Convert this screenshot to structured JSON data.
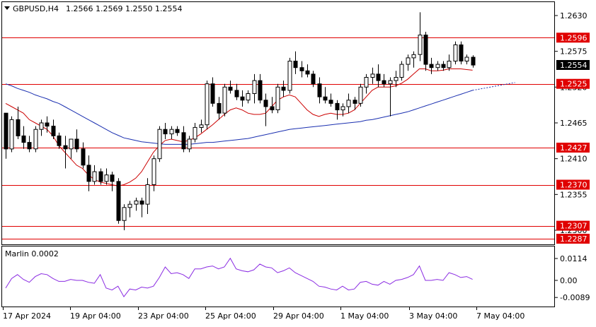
{
  "header": {
    "symbol": "GBPUSD,H4",
    "ohlc": "1.2566 1.2569 1.2550 1.2554"
  },
  "indicator": {
    "label": "Marlin 0.0002",
    "axis_labels": [
      "0.0114",
      "0.00",
      "-0.0089"
    ]
  },
  "price_axis": {
    "labels": [
      "1.2630",
      "1.2575",
      "1.2520",
      "1.2465",
      "1.2410",
      "1.2355",
      "1.2300"
    ]
  },
  "levels": [
    "1.2596",
    "1.2525",
    "1.2427",
    "1.2370",
    "1.2307",
    "1.2287"
  ],
  "current_price": "1.2554",
  "time_axis": {
    "labels": [
      "17 Apr 2024",
      "19 Apr 04:00",
      "23 Apr 04:00",
      "25 Apr 04:00",
      "29 Apr 04:00",
      "1 May 04:00",
      "3 May 04:00",
      "7 May 04:00"
    ]
  },
  "colors": {
    "level_line": "#e00000",
    "tag_bg": "#e00000",
    "current_tag_bg": "#000000",
    "ma_fast": "#cc0000",
    "ma_slow": "#1a2fb0",
    "oscillator": "#8a2be2",
    "bull_candle": "#ffffff",
    "bear_candle": "#000000"
  },
  "chart_data": {
    "type": "candlestick",
    "title": "GBPUSD,H4",
    "ylim": [
      1.2287,
      1.2648
    ],
    "candles": [
      [
        1.248,
        1.248,
        1.241,
        1.2425
      ],
      [
        1.2425,
        1.2475,
        1.242,
        1.247
      ],
      [
        1.247,
        1.249,
        1.244,
        1.2445
      ],
      [
        1.2445,
        1.246,
        1.2425,
        1.2435
      ],
      [
        1.2435,
        1.2445,
        1.242,
        1.2425
      ],
      [
        1.2425,
        1.246,
        1.242,
        1.2455
      ],
      [
        1.2455,
        1.247,
        1.2445,
        1.2465
      ],
      [
        1.2465,
        1.2475,
        1.245,
        1.246
      ],
      [
        1.246,
        1.247,
        1.244,
        1.2445
      ],
      [
        1.2445,
        1.245,
        1.2425,
        1.243
      ],
      [
        1.243,
        1.2445,
        1.2395,
        1.2425
      ],
      [
        1.2425,
        1.244,
        1.241,
        1.244
      ],
      [
        1.244,
        1.2455,
        1.242,
        1.2425
      ],
      [
        1.2425,
        1.2435,
        1.2395,
        1.24
      ],
      [
        1.24,
        1.2415,
        1.236,
        1.2375
      ],
      [
        1.2375,
        1.24,
        1.237,
        1.239
      ],
      [
        1.239,
        1.2395,
        1.237,
        1.2375
      ],
      [
        1.2375,
        1.2395,
        1.237,
        1.2385
      ],
      [
        1.2385,
        1.239,
        1.236,
        1.2375
      ],
      [
        1.2375,
        1.238,
        1.231,
        1.2315
      ],
      [
        1.2315,
        1.234,
        1.23,
        1.2335
      ],
      [
        1.2335,
        1.2345,
        1.232,
        1.234
      ],
      [
        1.234,
        1.235,
        1.233,
        1.2345
      ],
      [
        1.2345,
        1.235,
        1.232,
        1.234
      ],
      [
        1.234,
        1.238,
        1.2325,
        1.237
      ],
      [
        1.237,
        1.2415,
        1.236,
        1.241
      ],
      [
        1.241,
        1.246,
        1.2405,
        1.2455
      ],
      [
        1.2455,
        1.2465,
        1.244,
        1.2448
      ],
      [
        1.2448,
        1.246,
        1.244,
        1.2455
      ],
      [
        1.2455,
        1.246,
        1.2445,
        1.245
      ],
      [
        1.245,
        1.246,
        1.242,
        1.2425
      ],
      [
        1.2425,
        1.2445,
        1.242,
        1.244
      ],
      [
        1.244,
        1.2465,
        1.2435,
        1.2458
      ],
      [
        1.2458,
        1.247,
        1.245,
        1.2462
      ],
      [
        1.2462,
        1.253,
        1.2455,
        1.2525
      ],
      [
        1.2525,
        1.2535,
        1.249,
        1.2495
      ],
      [
        1.2495,
        1.2505,
        1.247,
        1.248
      ],
      [
        1.248,
        1.2525,
        1.2475,
        1.252
      ],
      [
        1.252,
        1.253,
        1.251,
        1.2515
      ],
      [
        1.2515,
        1.2525,
        1.25,
        1.2505
      ],
      [
        1.2505,
        1.2515,
        1.249,
        1.25
      ],
      [
        1.25,
        1.2515,
        1.2495,
        1.251
      ],
      [
        1.251,
        1.254,
        1.2495,
        1.253
      ],
      [
        1.253,
        1.254,
        1.2495,
        1.25
      ],
      [
        1.25,
        1.251,
        1.246,
        1.249
      ],
      [
        1.249,
        1.2505,
        1.248,
        1.2485
      ],
      [
        1.2485,
        1.2525,
        1.248,
        1.252
      ],
      [
        1.252,
        1.253,
        1.2505,
        1.2515
      ],
      [
        1.2515,
        1.2565,
        1.251,
        1.256
      ],
      [
        1.256,
        1.2575,
        1.254,
        1.255
      ],
      [
        1.255,
        1.256,
        1.2535,
        1.2545
      ],
      [
        1.2545,
        1.2555,
        1.2535,
        1.254
      ],
      [
        1.254,
        1.2545,
        1.252,
        1.2525
      ],
      [
        1.2525,
        1.2535,
        1.2495,
        1.2505
      ],
      [
        1.2505,
        1.252,
        1.2495,
        1.25
      ],
      [
        1.25,
        1.251,
        1.249,
        1.2495
      ],
      [
        1.2495,
        1.25,
        1.247,
        1.2485
      ],
      [
        1.2485,
        1.2495,
        1.2475,
        1.249
      ],
      [
        1.249,
        1.251,
        1.248,
        1.25
      ],
      [
        1.25,
        1.2505,
        1.2485,
        1.2495
      ],
      [
        1.2495,
        1.2525,
        1.249,
        1.252
      ],
      [
        1.252,
        1.254,
        1.251,
        1.2535
      ],
      [
        1.2535,
        1.255,
        1.2525,
        1.254
      ],
      [
        1.254,
        1.2555,
        1.252,
        1.253
      ],
      [
        1.253,
        1.254,
        1.252,
        1.2525
      ],
      [
        1.2525,
        1.2535,
        1.2475,
        1.253
      ],
      [
        1.253,
        1.2545,
        1.252,
        1.2535
      ],
      [
        1.2535,
        1.256,
        1.253,
        1.2555
      ],
      [
        1.2555,
        1.257,
        1.2545,
        1.2565
      ],
      [
        1.2565,
        1.2575,
        1.255,
        1.257
      ],
      [
        1.257,
        1.2635,
        1.256,
        1.26
      ],
      [
        1.26,
        1.2605,
        1.2545,
        1.2555
      ],
      [
        1.2555,
        1.2565,
        1.254,
        1.255
      ],
      [
        1.255,
        1.256,
        1.2545,
        1.2555
      ],
      [
        1.2555,
        1.256,
        1.2545,
        1.255
      ],
      [
        1.255,
        1.257,
        1.2545,
        1.256
      ],
      [
        1.256,
        1.259,
        1.2555,
        1.2585
      ],
      [
        1.2585,
        1.259,
        1.2555,
        1.256
      ],
      [
        1.256,
        1.257,
        1.2555,
        1.2566
      ],
      [
        1.2566,
        1.2569,
        1.255,
        1.2554
      ]
    ],
    "ma_fast": [
      1.2495,
      1.249,
      1.2485,
      1.248,
      1.247,
      1.2465,
      1.246,
      1.2455,
      1.2445,
      1.243,
      1.242,
      1.241,
      1.24,
      1.2395,
      1.2385,
      1.2378,
      1.2374,
      1.2372,
      1.237,
      1.2368,
      1.237,
      1.2374,
      1.238,
      1.239,
      1.2405,
      1.242,
      1.243,
      1.2438,
      1.244,
      1.2438,
      1.2436,
      1.2438,
      1.2442,
      1.2448,
      1.2455,
      1.2462,
      1.247,
      1.2478,
      1.2485,
      1.2488,
      1.2485,
      1.248,
      1.2478,
      1.2478,
      1.248,
      1.249,
      1.25,
      1.2505,
      1.2508,
      1.2505,
      1.2495,
      1.2485,
      1.2478,
      1.2475,
      1.2478,
      1.248,
      1.2478,
      1.2478,
      1.248,
      1.2485,
      1.2495,
      1.2505,
      1.2515,
      1.252,
      1.252,
      1.252,
      1.2522,
      1.2526,
      1.2532,
      1.254,
      1.2548,
      1.2548,
      1.2545,
      1.2545,
      1.2546,
      1.2548,
      1.2548,
      1.2548,
      1.2547,
      1.2546
    ],
    "ma_slow": [
      1.2525,
      1.2522,
      1.2518,
      1.2515,
      1.2512,
      1.2508,
      1.2505,
      1.2502,
      1.2498,
      1.2495,
      1.249,
      1.2485,
      1.248,
      1.2475,
      1.247,
      1.2465,
      1.246,
      1.2455,
      1.245,
      1.2446,
      1.2442,
      1.244,
      1.2438,
      1.2436,
      1.2435,
      1.2434,
      1.2433,
      1.2432,
      1.2432,
      1.2432,
      1.2432,
      1.2432,
      1.2433,
      1.2434,
      1.2435,
      1.2435,
      1.2436,
      1.2437,
      1.2438,
      1.2439,
      1.244,
      1.2441,
      1.2443,
      1.2445,
      1.2447,
      1.2449,
      1.2451,
      1.2453,
      1.2455,
      1.2456,
      1.2457,
      1.2458,
      1.2459,
      1.246,
      1.2461,
      1.2462,
      1.2463,
      1.2464,
      1.2465,
      1.2466,
      1.2467,
      1.2469,
      1.247,
      1.2472,
      1.2474,
      1.2476,
      1.2478,
      1.248,
      1.2482,
      1.2485,
      1.2488,
      1.2491,
      1.2494,
      1.2497,
      1.25,
      1.2503,
      1.2506,
      1.2509,
      1.2512,
      1.2515
    ],
    "ma_slow_projection": [
      1.2515,
      1.2518,
      1.2521,
      1.2524,
      1.2527
    ],
    "oscillator": {
      "name": "Marlin",
      "ylim": [
        -0.0089,
        0.0114
      ],
      "values": [
        -0.004,
        0.001,
        0.003,
        0.0005,
        -0.001,
        0.002,
        0.0035,
        0.003,
        0.001,
        -0.0005,
        -0.0005,
        0.0005,
        0.0,
        0.0,
        -0.001,
        -0.0015,
        0.003,
        -0.004,
        -0.005,
        -0.003,
        -0.0085,
        -0.0045,
        -0.005,
        -0.0035,
        -0.004,
        -0.003,
        0.0015,
        0.007,
        0.0035,
        0.004,
        0.003,
        0.001,
        0.006,
        0.006,
        0.007,
        0.0075,
        0.006,
        0.007,
        0.0115,
        0.006,
        0.005,
        0.0045,
        0.0055,
        0.0085,
        0.007,
        0.0065,
        0.004,
        0.005,
        0.0065,
        0.004,
        0.0025,
        0.001,
        -0.0005,
        -0.003,
        -0.0035,
        -0.0045,
        -0.005,
        -0.003,
        -0.005,
        -0.0045,
        -0.001,
        -0.0005,
        -0.002,
        -0.0025,
        -0.0005,
        -0.002,
        0.0,
        0.0005,
        0.0015,
        0.003,
        0.0075,
        0.0,
        0.0,
        0.0005,
        0.0,
        0.004,
        0.003,
        0.0015,
        0.002,
        0.0005
      ]
    }
  }
}
